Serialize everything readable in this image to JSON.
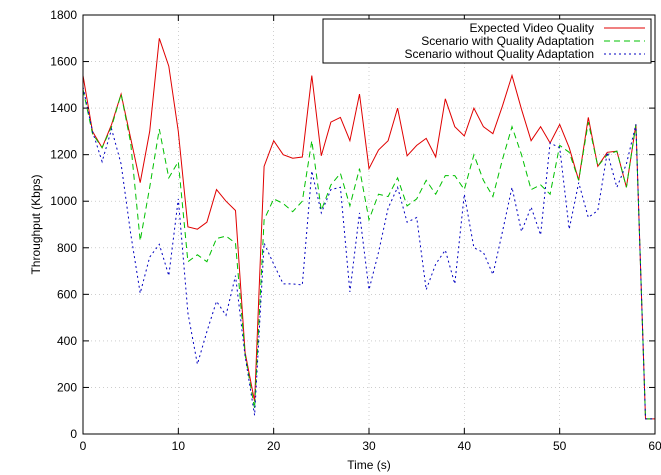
{
  "chart_data": {
    "type": "line",
    "xlabel": "Time (s)",
    "ylabel": "Throughput (Kbps)",
    "xlim": [
      0,
      60
    ],
    "ylim": [
      0,
      1800
    ],
    "xticks": [
      0,
      10,
      20,
      30,
      40,
      50,
      60
    ],
    "yticks": [
      0,
      200,
      400,
      600,
      800,
      1000,
      1200,
      1400,
      1600,
      1800
    ],
    "grid": true,
    "legend_position": "top-right",
    "x": [
      0,
      1,
      2,
      3,
      4,
      5,
      6,
      7,
      8,
      9,
      10,
      11,
      12,
      13,
      14,
      15,
      16,
      17,
      18,
      19,
      20,
      21,
      22,
      23,
      24,
      25,
      26,
      27,
      28,
      29,
      30,
      31,
      32,
      33,
      34,
      35,
      36,
      37,
      38,
      39,
      40,
      41,
      42,
      43,
      44,
      45,
      46,
      47,
      48,
      49,
      50,
      51,
      52,
      53,
      54,
      55,
      56,
      57,
      58,
      59,
      60
    ],
    "series": [
      {
        "name": "Expected Video Quality",
        "color": "#e00000",
        "dash": "solid",
        "values": [
          1540,
          1300,
          1230,
          1330,
          1460,
          1270,
          1080,
          1300,
          1700,
          1580,
          1300,
          890,
          880,
          910,
          1050,
          1000,
          960,
          350,
          140,
          1150,
          1260,
          1200,
          1185,
          1190,
          1540,
          1195,
          1340,
          1360,
          1260,
          1460,
          1140,
          1220,
          1260,
          1400,
          1195,
          1240,
          1270,
          1190,
          1440,
          1320,
          1280,
          1400,
          1320,
          1290,
          1410,
          1540,
          1395,
          1260,
          1320,
          1250,
          1330,
          1230,
          1090,
          1360,
          1150,
          1210,
          1215,
          1060,
          1330,
          65,
          65
        ]
      },
      {
        "name": "Scenario with Quality Adaptation",
        "color": "#00c000",
        "dash": "6,4",
        "values": [
          1480,
          1290,
          1230,
          1320,
          1460,
          1250,
          830,
          1060,
          1310,
          1100,
          1170,
          740,
          770,
          740,
          840,
          850,
          820,
          340,
          110,
          920,
          1010,
          990,
          955,
          1000,
          1260,
          960,
          1070,
          1120,
          980,
          1140,
          920,
          1030,
          1020,
          1100,
          980,
          1010,
          1090,
          1030,
          1110,
          1110,
          1050,
          1200,
          1090,
          1020,
          1180,
          1320,
          1200,
          1050,
          1070,
          1030,
          1240,
          1210,
          1090,
          1340,
          1150,
          1200,
          1215,
          1060,
          1330,
          65,
          65
        ]
      },
      {
        "name": "Scenario without Quality Adaptation",
        "color": "#0000c0",
        "dash": "2,3",
        "values": [
          1490,
          1300,
          1170,
          1310,
          1160,
          860,
          605,
          760,
          815,
          680,
          1010,
          520,
          300,
          440,
          570,
          510,
          680,
          335,
          80,
          820,
          730,
          645,
          645,
          640,
          1130,
          950,
          1050,
          1060,
          610,
          950,
          620,
          780,
          970,
          1060,
          910,
          930,
          620,
          730,
          790,
          645,
          1030,
          800,
          780,
          685,
          870,
          1060,
          870,
          975,
          855,
          1250,
          1230,
          880,
          1080,
          930,
          960,
          1210,
          1060,
          1160,
          1330,
          65,
          65
        ]
      }
    ]
  }
}
